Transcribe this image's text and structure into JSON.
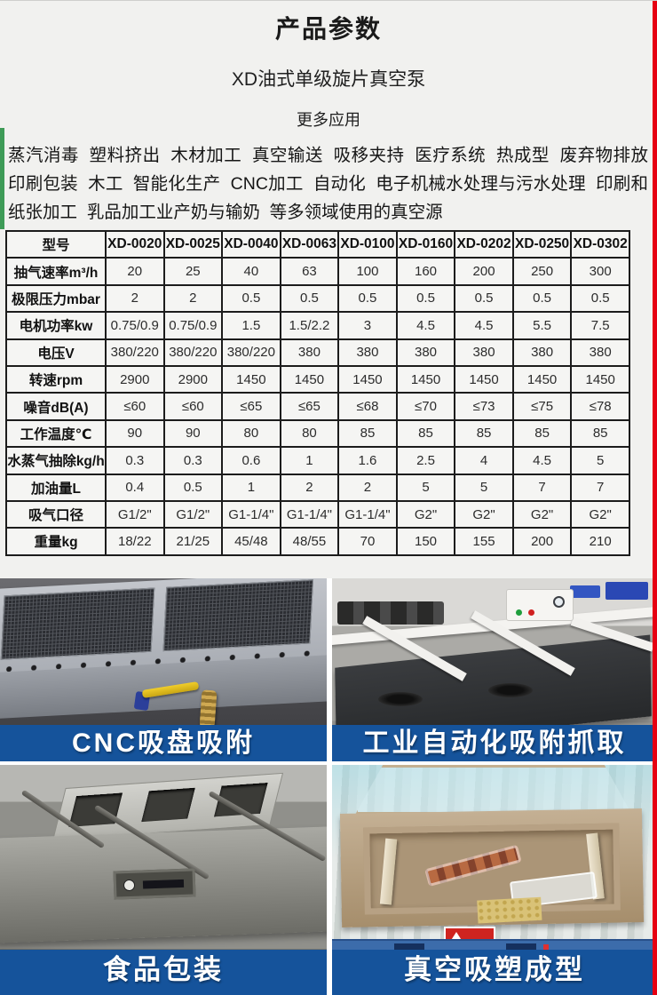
{
  "page": {
    "title": "产品参数",
    "subtitle": "XD油式单级旋片真空泵",
    "more_apps_label": "更多应用",
    "applications": "蒸汽消毒  塑料挤出  木材加工  真空输送  吸移夹持  医疗系统  热成型  废弃物排放  印刷包装  木工  智能化生产  CNC加工  自动化  电子机械水处理与污水处理  印刷和纸张加工  乳品加工业产奶与输奶  等多领域使用的真空源"
  },
  "spec_table": {
    "header": [
      "型号",
      "XD-0020",
      "XD-0025",
      "XD-0040",
      "XD-0063",
      "XD-0100",
      "XD-0160",
      "XD-0202",
      "XD-0250",
      "XD-0302"
    ],
    "rows": [
      {
        "label": "抽气速率m³/h",
        "values": [
          "20",
          "25",
          "40",
          "63",
          "100",
          "160",
          "200",
          "250",
          "300"
        ]
      },
      {
        "label": "极限压力mbar",
        "values": [
          "2",
          "2",
          "0.5",
          "0.5",
          "0.5",
          "0.5",
          "0.5",
          "0.5",
          "0.5"
        ]
      },
      {
        "label": "电机功率kw",
        "values": [
          "0.75/0.9",
          "0.75/0.9",
          "1.5",
          "1.5/2.2",
          "3",
          "4.5",
          "4.5",
          "5.5",
          "7.5"
        ]
      },
      {
        "label": "电压V",
        "values": [
          "380/220",
          "380/220",
          "380/220",
          "380",
          "380",
          "380",
          "380",
          "380",
          "380"
        ]
      },
      {
        "label": "转速rpm",
        "values": [
          "2900",
          "2900",
          "1450",
          "1450",
          "1450",
          "1450",
          "1450",
          "1450",
          "1450"
        ]
      },
      {
        "label": "噪音dB(A)",
        "values": [
          "≤60",
          "≤60",
          "≤65",
          "≤65",
          "≤68",
          "≤70",
          "≤73",
          "≤75",
          "≤78"
        ]
      },
      {
        "label": "工作温度℃",
        "values": [
          "90",
          "90",
          "80",
          "80",
          "85",
          "85",
          "85",
          "85",
          "85"
        ]
      },
      {
        "label": "水蒸气抽除kg/h",
        "values": [
          "0.3",
          "0.3",
          "0.6",
          "1",
          "1.6",
          "2.5",
          "4",
          "4.5",
          "5"
        ]
      },
      {
        "label": "加油量L",
        "values": [
          "0.4",
          "0.5",
          "1",
          "2",
          "2",
          "5",
          "5",
          "7",
          "7"
        ]
      },
      {
        "label": "吸气口径",
        "values": [
          "G1/2\"",
          "G1/2\"",
          "G1-1/4\"",
          "G1-1/4\"",
          "G1-1/4\"",
          "G2\"",
          "G2\"",
          "G2\"",
          "G2\""
        ]
      },
      {
        "label": "重量kg",
        "values": [
          "18/22",
          "21/25",
          "45/48",
          "48/55",
          "70",
          "150",
          "155",
          "200",
          "210"
        ]
      }
    ]
  },
  "gallery": {
    "captions": [
      "CNC吸盘吸附",
      "工业自动化吸附抓取",
      "食品包装",
      "真空吸塑成型"
    ]
  },
  "colors": {
    "caption_bar": "#15539b",
    "right_strip": "#e60012",
    "left_strip": "#3e9b57"
  }
}
